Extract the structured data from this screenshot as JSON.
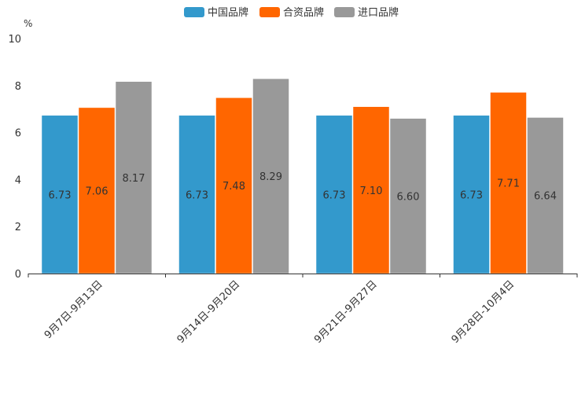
{
  "chart_data": {
    "type": "bar",
    "title": "",
    "xlabel": "",
    "ylabel": "%",
    "ylim": [
      0,
      10
    ],
    "yticks": [
      0,
      2,
      4,
      6,
      8,
      10
    ],
    "grid": false,
    "legend_position": "top-center",
    "categories": [
      "9月7日-9月13日",
      "9月14日-9月20日",
      "9月21日-9月27日",
      "9月28日-10月4日"
    ],
    "series": [
      {
        "name": "中国品牌",
        "color": "#3399cc",
        "values": [
          6.73,
          6.73,
          6.73,
          6.73
        ],
        "labels": [
          "6.73",
          "6.73",
          "6.73",
          "6.73"
        ]
      },
      {
        "name": "合资品牌",
        "color": "#ff6600",
        "values": [
          7.06,
          7.48,
          7.1,
          7.71
        ],
        "labels": [
          "7.06",
          "7.48",
          "7.10",
          "7.71"
        ]
      },
      {
        "name": "进口品牌",
        "color": "#999999",
        "values": [
          8.17,
          8.29,
          6.6,
          6.64
        ],
        "labels": [
          "8.17",
          "8.29",
          "6.60",
          "6.64"
        ]
      }
    ]
  }
}
